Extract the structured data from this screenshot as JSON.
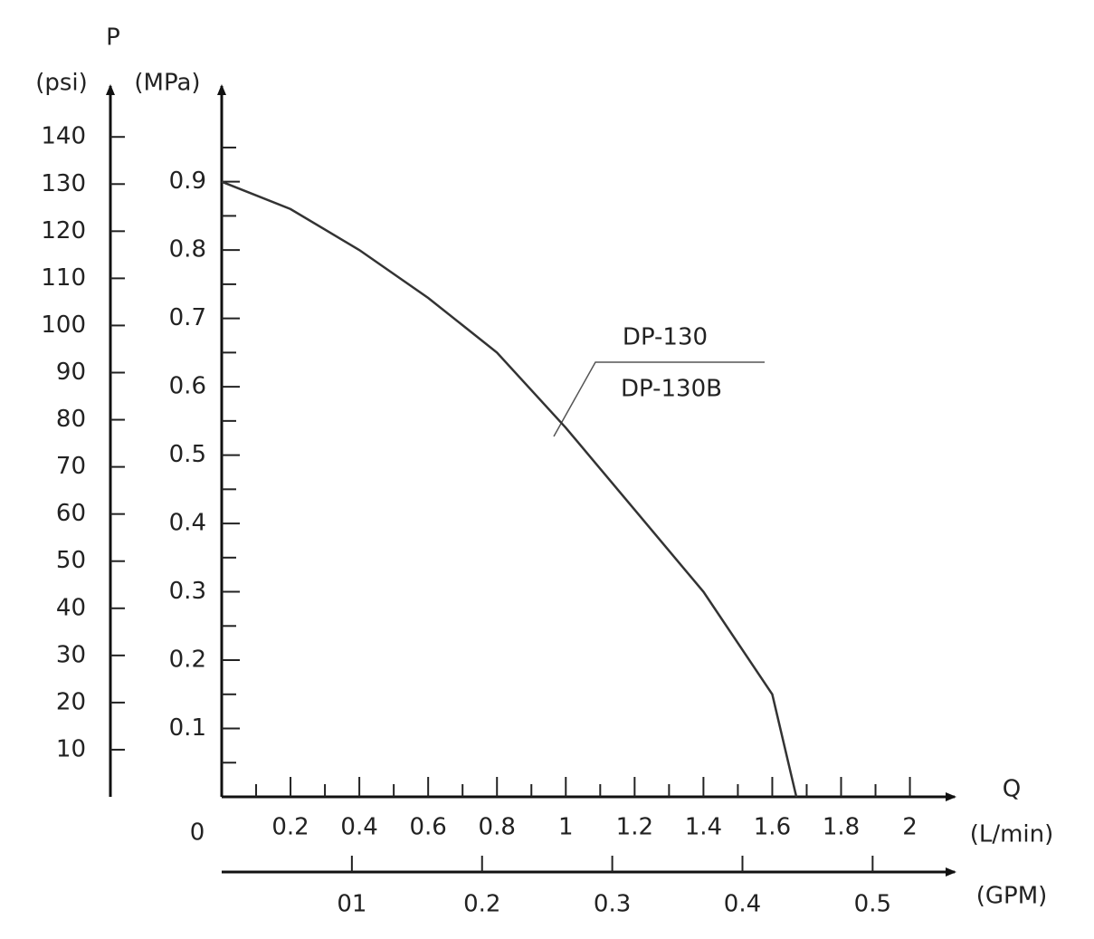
{
  "chart_data": {
    "type": "line",
    "y_axis_label": "P",
    "y_unit": "(MPa)",
    "y2_unit": "(psi)",
    "x_axis_label": "Q",
    "x_unit": "(L/min)",
    "x2_unit": "(GPM)",
    "origin_label": "0",
    "annotations": [
      "DP-130",
      "DP-130B"
    ],
    "color": "#333333",
    "x": [
      0,
      0.2,
      0.4,
      0.6,
      0.8,
      1.0,
      1.2,
      1.4,
      1.6,
      1.67
    ],
    "values": [
      0.9,
      0.86,
      0.8,
      0.73,
      0.65,
      0.54,
      0.42,
      0.3,
      0.15,
      0
    ],
    "xlim": [
      0,
      2.13
    ],
    "xticks": [
      0.2,
      0.4,
      0.6,
      0.8,
      1.0,
      1.2,
      1.4,
      1.6,
      1.8,
      2.0
    ],
    "xminorticks": [
      0.1,
      0.3,
      0.5,
      0.7,
      0.9,
      1.1,
      1.3,
      1.5,
      1.7,
      1.9
    ],
    "x2lim": [
      0,
      0.563
    ],
    "x2ticks": [
      {
        "value": 0.1,
        "label": "01"
      },
      0.2,
      0.3,
      0.4,
      0.5
    ],
    "ylim": [
      0,
      1.04
    ],
    "yticks": [
      0.1,
      0.2,
      0.3,
      0.4,
      0.5,
      0.6,
      0.7,
      0.8,
      0.9
    ],
    "yminorticks": [
      0.05,
      0.15,
      0.25,
      0.35,
      0.45,
      0.55,
      0.65,
      0.75,
      0.85,
      0.95
    ],
    "y2lim": [
      0,
      150.8
    ],
    "y2ticks": [
      10,
      20,
      30,
      40,
      50,
      60,
      70,
      80,
      90,
      100,
      110,
      120,
      130,
      140
    ]
  }
}
